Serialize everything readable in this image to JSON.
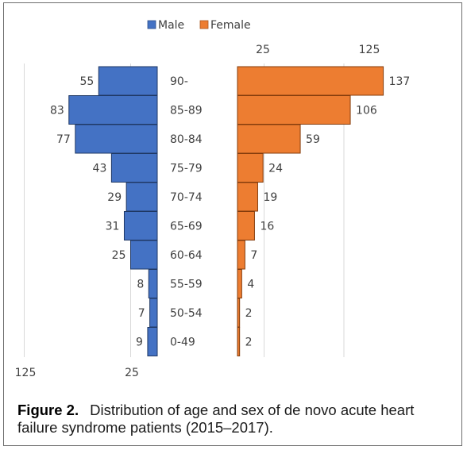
{
  "chart_data": {
    "type": "bar",
    "subtype": "population-pyramid",
    "categories": [
      "90-",
      "85-89",
      "80-84",
      "75-79",
      "70-74",
      "65-69",
      "60-64",
      "55-59",
      "50-54",
      "0-49"
    ],
    "series": [
      {
        "name": "Male",
        "color": "#4472c4",
        "values": [
          55,
          83,
          77,
          43,
          29,
          31,
          25,
          8,
          7,
          9
        ]
      },
      {
        "name": "Female",
        "color": "#ed7d31",
        "values": [
          137,
          106,
          59,
          24,
          19,
          16,
          7,
          4,
          2,
          2
        ]
      }
    ],
    "female_axis_ticks": [
      "25",
      "125"
    ],
    "male_axis_ticks": [
      "125",
      "25"
    ],
    "legend_position": "top-center",
    "grid": true
  },
  "caption": {
    "label": "Figure 2.",
    "text": "Distribution of age and sex of de novo acute heart failure syndrome patients (2015–2017)."
  }
}
